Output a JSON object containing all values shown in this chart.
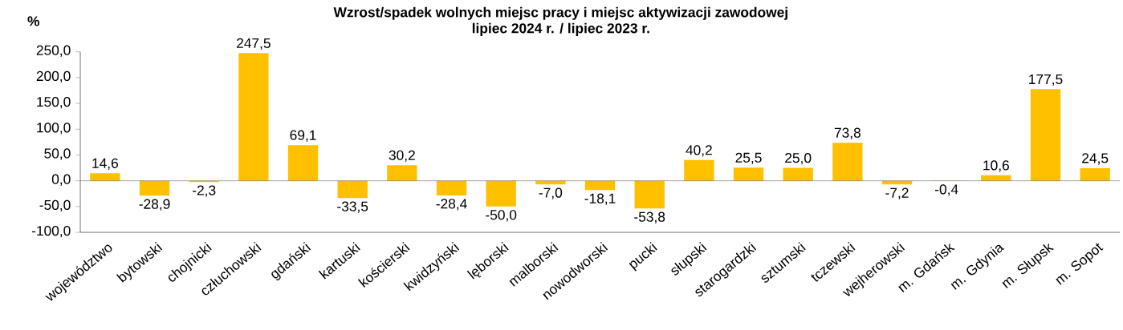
{
  "chart_data": {
    "type": "bar",
    "title": "Wzrost/spadek wolnych miejsc pracy i miejsc aktywizacji zawodowej",
    "subtitle": "lipiec 2024 r. / lipiec 2023 r.",
    "ylabel": "%",
    "categories": [
      "województwo",
      "bytowski",
      "chojnicki",
      "człuchowski",
      "gdański",
      "kartuski",
      "kościerski",
      "kwidzyński",
      "lęborski",
      "malborski",
      "nowodworski",
      "pucki",
      "słupski",
      "starogardzki",
      "sztumski",
      "tczewski",
      "wejherowski",
      "m. Gdańsk",
      "m. Gdynia",
      "m. Słupsk",
      "m. Sopot"
    ],
    "values": [
      14.6,
      -28.9,
      -2.3,
      247.5,
      69.1,
      -33.5,
      30.2,
      -28.4,
      -50.0,
      -7.0,
      -18.1,
      -53.8,
      40.2,
      25.5,
      25.0,
      73.8,
      -7.2,
      -0.4,
      10.6,
      177.5,
      24.5
    ],
    "value_labels": [
      "14,6",
      "-28,9",
      "-2,3",
      "247,5",
      "69,1",
      "-33,5",
      "30,2",
      "-28,4",
      "-50,0",
      "-7,0",
      "-18,1",
      "-53,8",
      "40,2",
      "25,5",
      "25,0",
      "73,8",
      "-7,2",
      "-0,4",
      "10,6",
      "177,5",
      "24,5"
    ],
    "color": "#ffc000",
    "ylim": [
      -100,
      250
    ],
    "yticks": [
      {
        "value": -100,
        "label": "-100,0"
      },
      {
        "value": -50,
        "label": "-50,0"
      },
      {
        "value": 0,
        "label": "0,0"
      },
      {
        "value": 50,
        "label": "50,0"
      },
      {
        "value": 100,
        "label": "100,0"
      },
      {
        "value": 150,
        "label": "150,0"
      },
      {
        "value": 200,
        "label": "200,0"
      },
      {
        "value": 250,
        "label": "250,0"
      }
    ]
  }
}
